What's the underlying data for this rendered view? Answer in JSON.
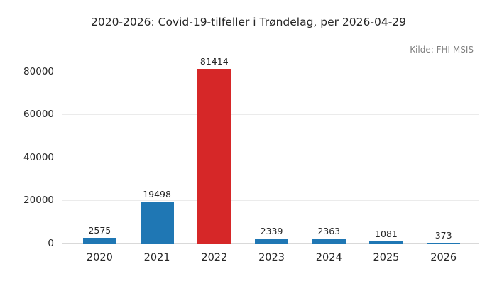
{
  "chart": {
    "title": "2020-2026: Covid-19-tilfeller i Trøndelag, per 2026-04-29",
    "source": "Kilde: FHI MSIS"
  },
  "chart_data": {
    "type": "bar",
    "title": "2020-2026: Covid-19-tilfeller i Trøndelag, per 2026-04-29",
    "annotation": "Kilde: FHI MSIS",
    "categories": [
      "2020",
      "2021",
      "2022",
      "2023",
      "2024",
      "2025",
      "2026"
    ],
    "values": [
      2575,
      19498,
      81414,
      2339,
      2363,
      1081,
      373
    ],
    "bar_labels": [
      "2575",
      "19498",
      "81414",
      "2339",
      "2363",
      "1081",
      "373"
    ],
    "bar_colors": [
      "#1f77b4",
      "#1f77b4",
      "#d62728",
      "#1f77b4",
      "#1f77b4",
      "#1f77b4",
      "#1f77b4"
    ],
    "highlighted_category": "2022",
    "xlabel": "",
    "ylabel": "",
    "yticks": [
      0,
      20000,
      40000,
      60000,
      80000
    ],
    "ylim": [
      0,
      85000
    ],
    "grid": true,
    "legend": false,
    "colors": {
      "bar_default": "#1f77b4",
      "bar_highlight": "#d62728",
      "gridline": "#ebebeb",
      "baseline": "#d9d9d9",
      "text": "#262626",
      "source_text": "#808080",
      "background": "#ffffff"
    }
  }
}
